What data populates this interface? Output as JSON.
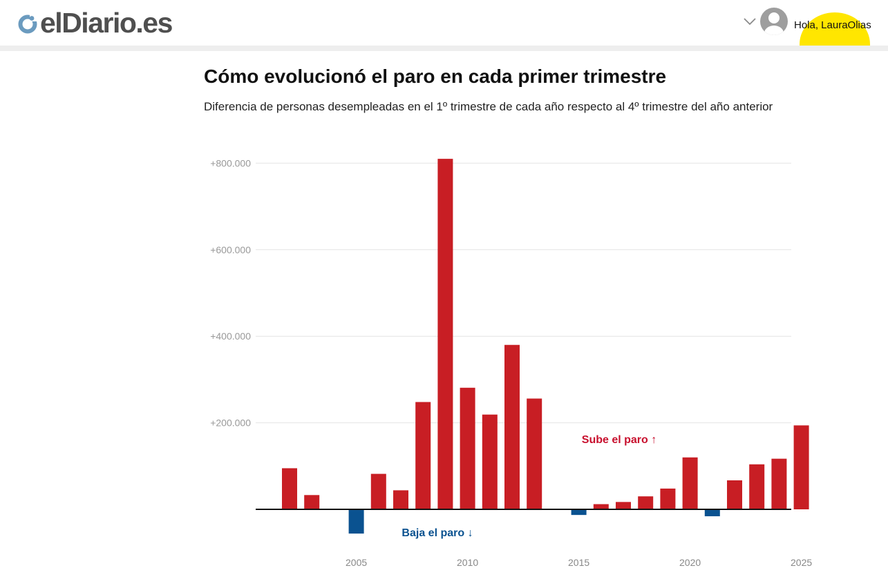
{
  "header": {
    "logo_text": "elDiario.es",
    "greeting": "Hola, LauraOlias",
    "logo_icon": "eldiario-logo-icon",
    "menu_icon": "chevron-down-icon",
    "avatar_icon": "user-avatar-icon",
    "colors": {
      "logo_blue": "#6b9bbf",
      "logo_text": "#4f4f4f",
      "highlight": "#ffe600"
    }
  },
  "chart_data": {
    "type": "bar",
    "title": "Cómo evolucionó el paro en cada primer trimestre",
    "subtitle": "Diferencia de personas desempleadas en el 1º trimestre de cada año respecto al 4º trimestre del año anterior",
    "xlabel": "",
    "ylabel": "",
    "categories": [
      2002,
      2003,
      2004,
      2005,
      2006,
      2007,
      2008,
      2009,
      2010,
      2011,
      2012,
      2013,
      2014,
      2015,
      2016,
      2017,
      2018,
      2019,
      2020,
      2021,
      2022,
      2023,
      2024,
      2025
    ],
    "values": [
      95000,
      33000,
      0,
      -56000,
      82000,
      44000,
      248000,
      810000,
      281000,
      219000,
      380000,
      256000,
      0,
      -13000,
      12000,
      17000,
      30000,
      48000,
      120000,
      -16000,
      67000,
      104000,
      117000,
      194000
    ],
    "ylim": [
      -80000,
      830000
    ],
    "yticks": [
      {
        "value": 200000,
        "label": "+200.000"
      },
      {
        "value": 400000,
        "label": "+400.000"
      },
      {
        "value": 600000,
        "label": "+600.000"
      },
      {
        "value": 800000,
        "label": "+800.000"
      }
    ],
    "xticks": [
      {
        "value": 2005,
        "label": "2005"
      },
      {
        "value": 2010,
        "label": "2010"
      },
      {
        "value": 2015,
        "label": "2015"
      },
      {
        "value": 2020,
        "label": "2020"
      },
      {
        "value": 2025,
        "label": "2025"
      }
    ],
    "annotations": {
      "up": "Sube el paro ↑",
      "down": "Baja el paro ↓"
    },
    "colors": {
      "increase": "#c81e24",
      "decrease": "#0a5290",
      "grid": "#e4e4e4",
      "baseline": "#111111"
    },
    "grid": true
  }
}
